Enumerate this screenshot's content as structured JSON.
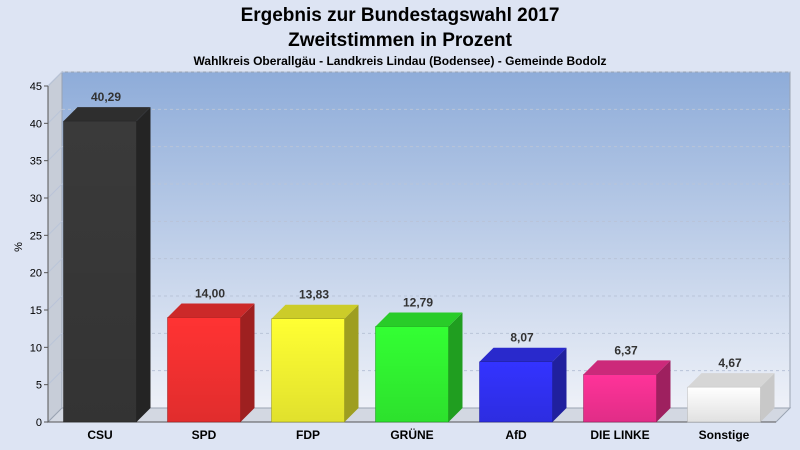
{
  "chart_data": {
    "type": "bar",
    "title": "Ergebnis zur Bundestagswahl 2017",
    "subtitle": "Zweitstimmen in Prozent",
    "subsubtitle": "Wahlkreis Oberallgäu - Landkreis Lindau (Bodensee) - Gemeinde Bodolz",
    "xlabel": "",
    "ylabel": "%",
    "ylim": [
      0,
      45
    ],
    "yticks": [
      0,
      5,
      10,
      15,
      20,
      25,
      30,
      35,
      40,
      45
    ],
    "grid": true,
    "categories": [
      "CSU",
      "SPD",
      "FDP",
      "GRÜNE",
      "AfD",
      "DIE LINKE",
      "Sonstige"
    ],
    "values": [
      40.29,
      14.0,
      13.83,
      12.79,
      8.07,
      6.37,
      4.67
    ],
    "value_labels": [
      "40,29",
      "14,00",
      "13,83",
      "12,79",
      "8,07",
      "6,37",
      "4,67"
    ],
    "colors": [
      "#3a3a3a",
      "#ff3333",
      "#ffff33",
      "#33ff33",
      "#3333ff",
      "#ff3399",
      "#ffffff"
    ]
  }
}
